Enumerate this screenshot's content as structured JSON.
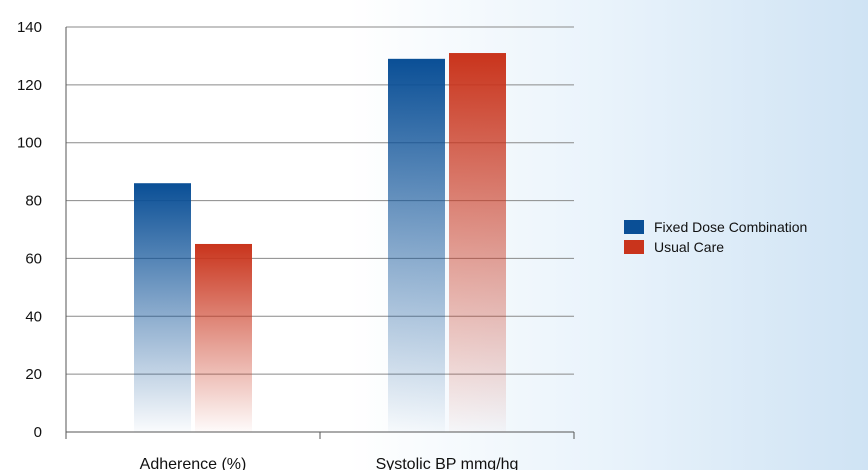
{
  "chart_data": {
    "type": "bar",
    "categories": [
      "Adherence (%)",
      "Systolic BP mmg/hg"
    ],
    "series": [
      {
        "name": "Fixed Dose Combination",
        "values": [
          86,
          129
        ],
        "color": "#0a4f96"
      },
      {
        "name": "Usual Care",
        "values": [
          65,
          131
        ],
        "color": "#c9341c"
      }
    ],
    "ylim": [
      0,
      140
    ],
    "yticks": [
      0,
      20,
      40,
      60,
      80,
      100,
      120,
      140
    ],
    "grid": true,
    "legend": "right"
  }
}
